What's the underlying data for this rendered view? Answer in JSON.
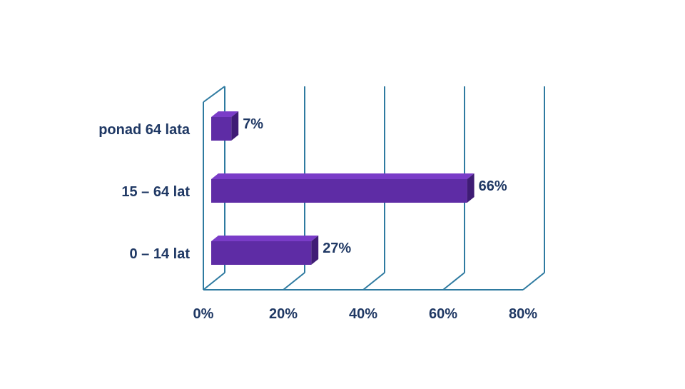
{
  "chart_data": {
    "type": "bar",
    "orientation": "horizontal",
    "three_d": true,
    "categories": [
      "ponad 64 lata",
      "15 – 64 lat",
      "0 – 14 lat"
    ],
    "values": [
      7,
      66,
      27
    ],
    "value_labels": [
      "7%",
      "66%",
      "27%"
    ],
    "xlim": [
      0,
      80
    ],
    "x_ticks": [
      0,
      20,
      40,
      60,
      80
    ],
    "x_tick_labels": [
      "0%",
      "20%",
      "40%",
      "60%",
      "80%"
    ],
    "title": "",
    "xlabel": "",
    "ylabel": "",
    "grid": true,
    "legend": "none",
    "colors": {
      "bar_front": "#5E2CA5",
      "bar_top": "#7A3CC8",
      "bar_side": "#3F1C75",
      "grid": "#2E7AA0",
      "text": "#1F3864"
    }
  }
}
